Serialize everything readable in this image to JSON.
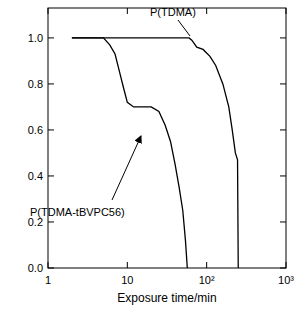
{
  "chart_data": {
    "type": "line",
    "x_label": "Exposure time/min",
    "log": "x",
    "xlim": [
      1,
      1000
    ],
    "xticks": [
      1,
      10,
      {
        "value": 100,
        "label": "10²"
      },
      {
        "value": 1000,
        "label": "10³"
      }
    ],
    "ylim": [
      0,
      1.13
    ],
    "yticks": [
      {
        "value": 0,
        "label": "0.0"
      },
      0.2,
      0.4,
      0.6,
      0.8,
      {
        "value": 1,
        "label": "1.0"
      }
    ],
    "series": [
      {
        "name": "P(TDMA)",
        "color": "#000000",
        "x": [
          2,
          60,
          65,
          75,
          90,
          110,
          130,
          160,
          190,
          210,
          230,
          245,
          250
        ],
        "values": [
          1.0,
          1.0,
          0.99,
          0.96,
          0.95,
          0.92,
          0.88,
          0.8,
          0.7,
          0.6,
          0.5,
          0.47,
          0.0
        ]
      },
      {
        "name": "P(TDMA-tBVPC56)",
        "color": "#000000",
        "x": [
          2,
          5,
          6,
          7,
          8,
          9,
          10,
          12,
          20,
          25,
          30,
          35,
          40,
          45,
          50,
          54,
          57
        ],
        "values": [
          1.0,
          1.0,
          0.97,
          0.93,
          0.85,
          0.78,
          0.72,
          0.7,
          0.7,
          0.68,
          0.62,
          0.55,
          0.45,
          0.35,
          0.25,
          0.12,
          0.0
        ]
      }
    ]
  }
}
